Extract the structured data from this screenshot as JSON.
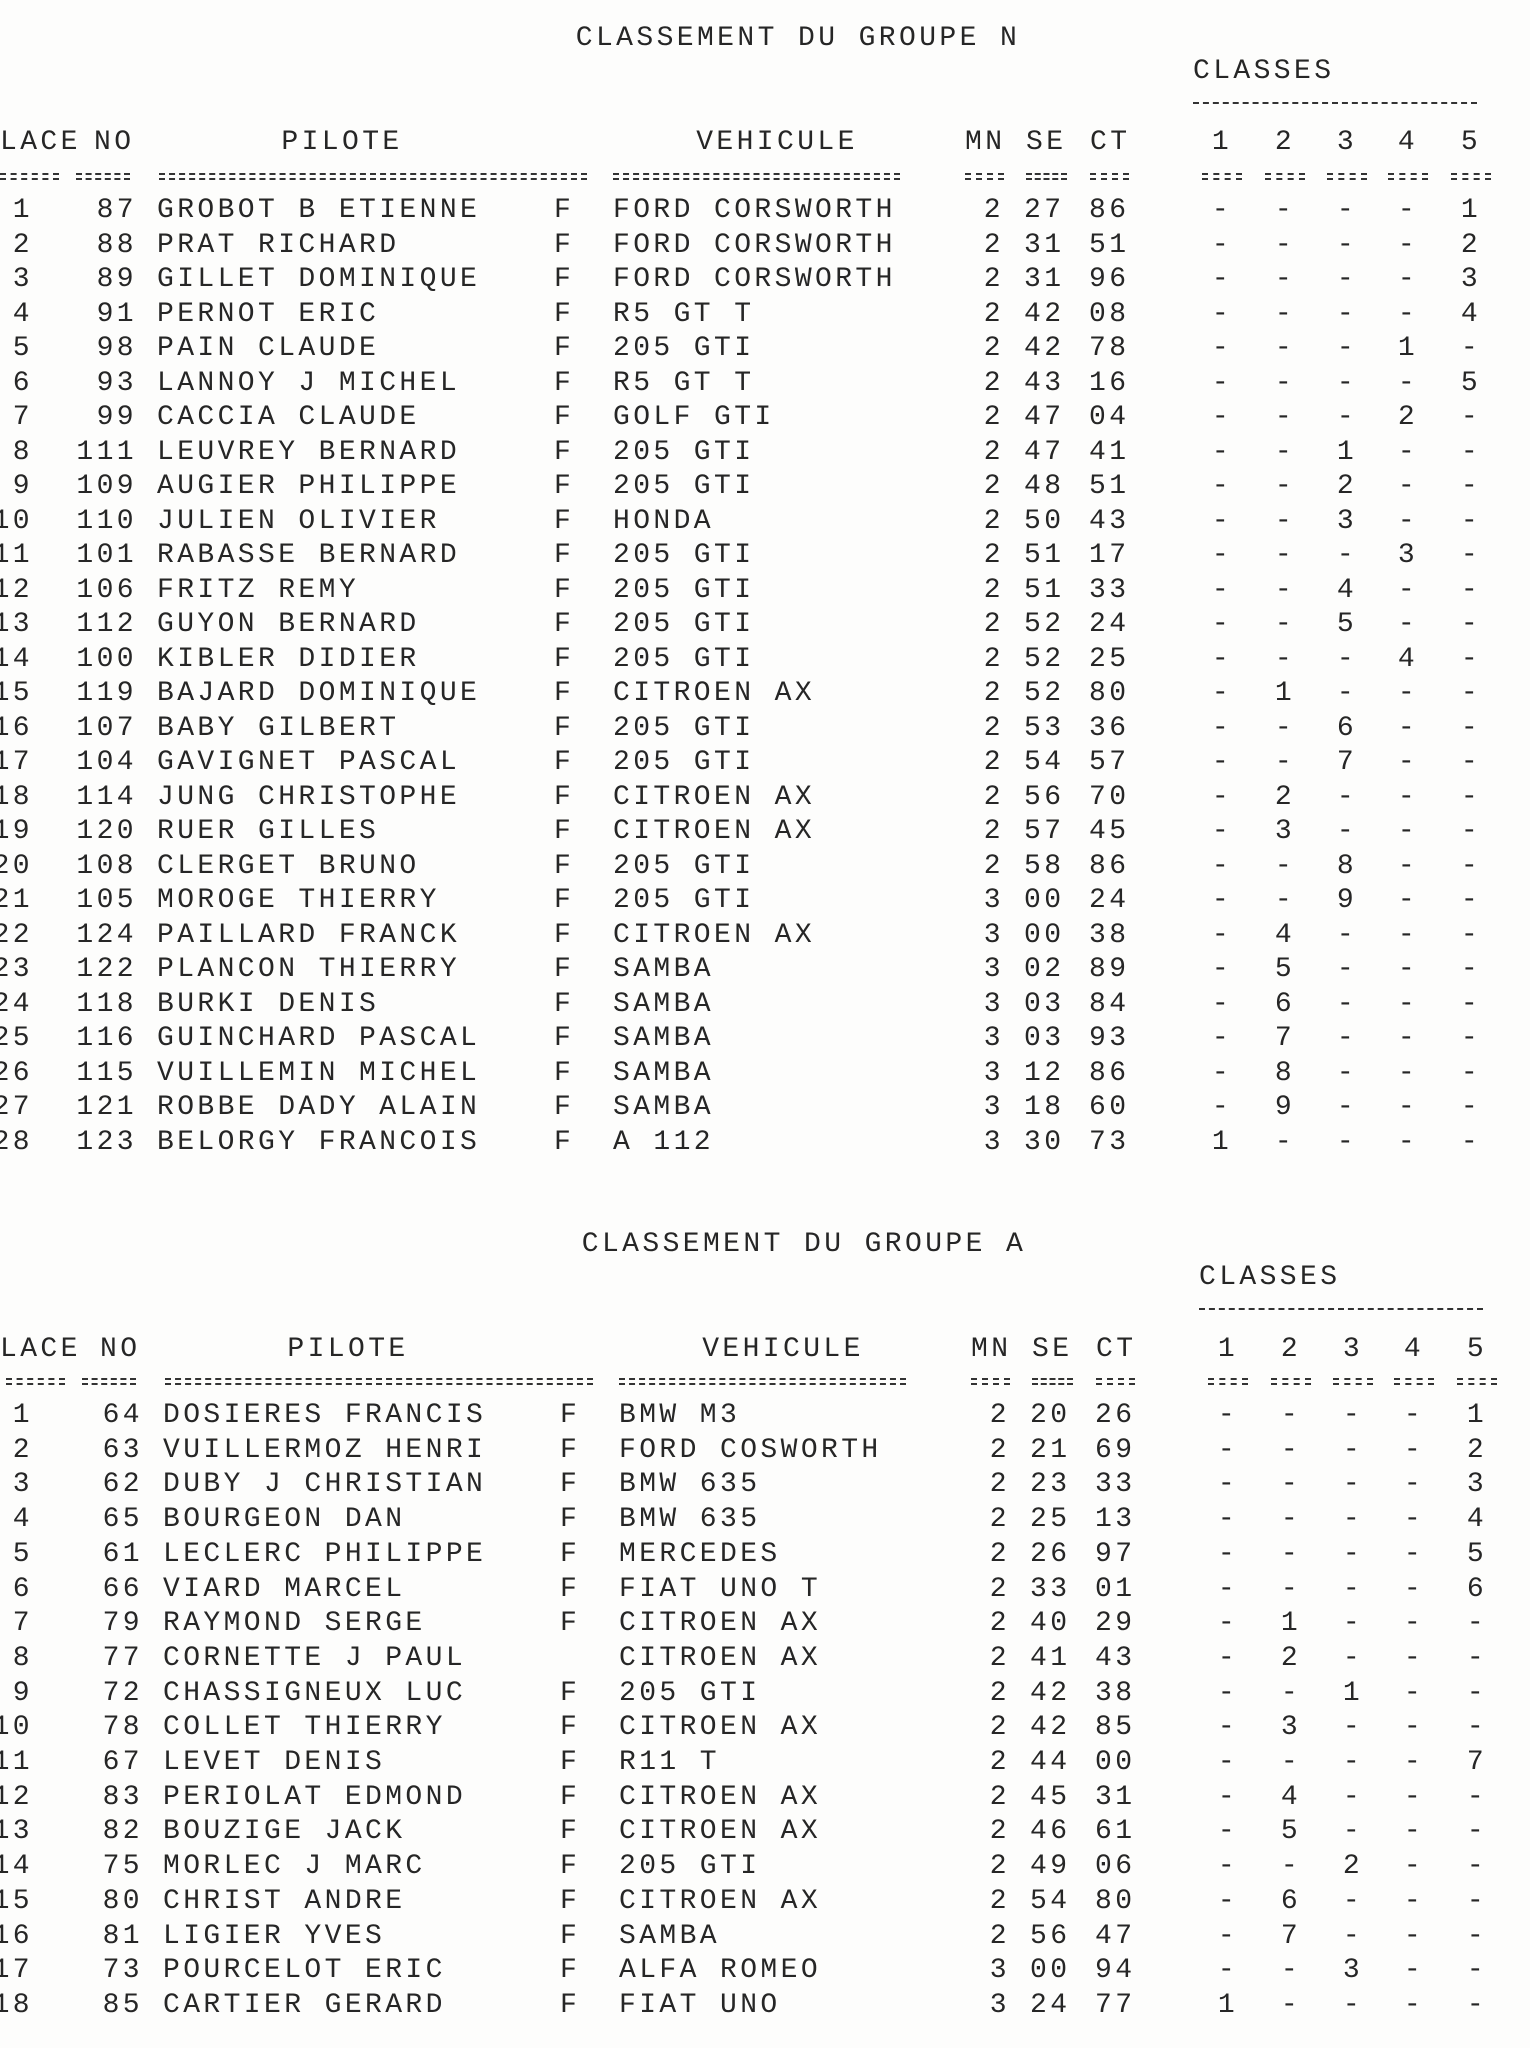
{
  "groups": [
    {
      "title": "CLASSEMENT DU GROUPE N",
      "classes_label": "CLASSES",
      "headers": {
        "place": "LACE",
        "no": "NO",
        "pilote": "PILOTE",
        "vehicule": "VEHICULE",
        "mn": "MN",
        "se": "SE",
        "ct": "CT",
        "classes": [
          "1",
          "2",
          "3",
          "4",
          "5"
        ]
      },
      "rows": [
        [
          "1",
          "87",
          "GROBOT B ETIENNE",
          "F",
          "FORD CORSWORTH",
          "2",
          "27",
          "86",
          "-",
          "-",
          "-",
          "-",
          "1"
        ],
        [
          "2",
          "88",
          "PRAT RICHARD",
          "F",
          "FORD CORSWORTH",
          "2",
          "31",
          "51",
          "-",
          "-",
          "-",
          "-",
          "2"
        ],
        [
          "3",
          "89",
          "GILLET DOMINIQUE",
          "F",
          "FORD CORSWORTH",
          "2",
          "31",
          "96",
          "-",
          "-",
          "-",
          "-",
          "3"
        ],
        [
          "4",
          "91",
          "PERNOT ERIC",
          "F",
          "R5 GT T",
          "2",
          "42",
          "08",
          "-",
          "-",
          "-",
          "-",
          "4"
        ],
        [
          "5",
          "98",
          "PAIN CLAUDE",
          "F",
          "205 GTI",
          "2",
          "42",
          "78",
          "-",
          "-",
          "-",
          "1",
          "-"
        ],
        [
          "6",
          "93",
          "LANNOY J MICHEL",
          "F",
          "R5 GT T",
          "2",
          "43",
          "16",
          "-",
          "-",
          "-",
          "-",
          "5"
        ],
        [
          "7",
          "99",
          "CACCIA CLAUDE",
          "F",
          "GOLF GTI",
          "2",
          "47",
          "04",
          "-",
          "-",
          "-",
          "2",
          "-"
        ],
        [
          "8",
          "111",
          "LEUVREY BERNARD",
          "F",
          "205 GTI",
          "2",
          "47",
          "41",
          "-",
          "-",
          "1",
          "-",
          "-"
        ],
        [
          "9",
          "109",
          "AUGIER PHILIPPE",
          "F",
          "205 GTI",
          "2",
          "48",
          "51",
          "-",
          "-",
          "2",
          "-",
          "-"
        ],
        [
          "10",
          "110",
          "JULIEN OLIVIER",
          "F",
          "HONDA",
          "2",
          "50",
          "43",
          "-",
          "-",
          "3",
          "-",
          "-"
        ],
        [
          "11",
          "101",
          "RABASSE BERNARD",
          "F",
          "205 GTI",
          "2",
          "51",
          "17",
          "-",
          "-",
          "-",
          "3",
          "-"
        ],
        [
          "12",
          "106",
          "FRITZ REMY",
          "F",
          "205 GTI",
          "2",
          "51",
          "33",
          "-",
          "-",
          "4",
          "-",
          "-"
        ],
        [
          "13",
          "112",
          "GUYON BERNARD",
          "F",
          "205 GTI",
          "2",
          "52",
          "24",
          "-",
          "-",
          "5",
          "-",
          "-"
        ],
        [
          "14",
          "100",
          "KIBLER DIDIER",
          "F",
          "205 GTI",
          "2",
          "52",
          "25",
          "-",
          "-",
          "-",
          "4",
          "-"
        ],
        [
          "15",
          "119",
          "BAJARD DOMINIQUE",
          "F",
          "CITROEN AX",
          "2",
          "52",
          "80",
          "-",
          "1",
          "-",
          "-",
          "-"
        ],
        [
          "16",
          "107",
          "BABY GILBERT",
          "F",
          "205 GTI",
          "2",
          "53",
          "36",
          "-",
          "-",
          "6",
          "-",
          "-"
        ],
        [
          "17",
          "104",
          "GAVIGNET PASCAL",
          "F",
          "205 GTI",
          "2",
          "54",
          "57",
          "-",
          "-",
          "7",
          "-",
          "-"
        ],
        [
          "18",
          "114",
          "JUNG CHRISTOPHE",
          "F",
          "CITROEN AX",
          "2",
          "56",
          "70",
          "-",
          "2",
          "-",
          "-",
          "-"
        ],
        [
          "19",
          "120",
          "RUER GILLES",
          "F",
          "CITROEN AX",
          "2",
          "57",
          "45",
          "-",
          "3",
          "-",
          "-",
          "-"
        ],
        [
          "20",
          "108",
          "CLERGET BRUNO",
          "F",
          "205 GTI",
          "2",
          "58",
          "86",
          "-",
          "-",
          "8",
          "-",
          "-"
        ],
        [
          "21",
          "105",
          "MOROGE THIERRY",
          "F",
          "205 GTI",
          "3",
          "00",
          "24",
          "-",
          "-",
          "9",
          "-",
          "-"
        ],
        [
          "22",
          "124",
          "PAILLARD FRANCK",
          "F",
          "CITROEN AX",
          "3",
          "00",
          "38",
          "-",
          "4",
          "-",
          "-",
          "-"
        ],
        [
          "23",
          "122",
          "PLANCON THIERRY",
          "F",
          "SAMBA",
          "3",
          "02",
          "89",
          "-",
          "5",
          "-",
          "-",
          "-"
        ],
        [
          "24",
          "118",
          "BURKI DENIS",
          "F",
          "SAMBA",
          "3",
          "03",
          "84",
          "-",
          "6",
          "-",
          "-",
          "-"
        ],
        [
          "25",
          "116",
          "GUINCHARD PASCAL",
          "F",
          "SAMBA",
          "3",
          "03",
          "93",
          "-",
          "7",
          "-",
          "-",
          "-"
        ],
        [
          "26",
          "115",
          "VUILLEMIN MICHEL",
          "F",
          "SAMBA",
          "3",
          "12",
          "86",
          "-",
          "8",
          "-",
          "-",
          "-"
        ],
        [
          "27",
          "121",
          "ROBBE DADY ALAIN",
          "F",
          "SAMBA",
          "3",
          "18",
          "60",
          "-",
          "9",
          "-",
          "-",
          "-"
        ],
        [
          "28",
          "123",
          "BELORGY FRANCOIS",
          "F",
          "A 112",
          "3",
          "30",
          "73",
          "1",
          "-",
          "-",
          "-",
          "-"
        ]
      ]
    },
    {
      "title": "CLASSEMENT DU GROUPE A",
      "classes_label": "CLASSES",
      "headers": {
        "place": "LACE",
        "no": "NO",
        "pilote": "PILOTE",
        "vehicule": "VEHICULE",
        "mn": "MN",
        "se": "SE",
        "ct": "CT",
        "classes": [
          "1",
          "2",
          "3",
          "4",
          "5"
        ]
      },
      "rows": [
        [
          "1",
          "64",
          "DOSIERES FRANCIS",
          "F",
          "BMW M3",
          "2",
          "20",
          "26",
          "-",
          "-",
          "-",
          "-",
          "1"
        ],
        [
          "2",
          "63",
          "VUILLERMOZ HENRI",
          "F",
          "FORD COSWORTH",
          "2",
          "21",
          "69",
          "-",
          "-",
          "-",
          "-",
          "2"
        ],
        [
          "3",
          "62",
          "DUBY J CHRISTIAN",
          "F",
          "BMW 635",
          "2",
          "23",
          "33",
          "-",
          "-",
          "-",
          "-",
          "3"
        ],
        [
          "4",
          "65",
          "BOURGEON DAN",
          "F",
          "BMW 635",
          "2",
          "25",
          "13",
          "-",
          "-",
          "-",
          "-",
          "4"
        ],
        [
          "5",
          "61",
          "LECLERC PHILIPPE",
          "F",
          "MERCEDES",
          "2",
          "26",
          "97",
          "-",
          "-",
          "-",
          "-",
          "5"
        ],
        [
          "6",
          "66",
          "VIARD MARCEL",
          "F",
          "FIAT UNO T",
          "2",
          "33",
          "01",
          "-",
          "-",
          "-",
          "-",
          "6"
        ],
        [
          "7",
          "79",
          "RAYMOND SERGE",
          "F",
          "CITROEN AX",
          "2",
          "40",
          "29",
          "-",
          "1",
          "-",
          "-",
          "-"
        ],
        [
          "8",
          "77",
          "CORNETTE J PAUL",
          null,
          "CITROEN AX",
          "2",
          "41",
          "43",
          "-",
          "2",
          "-",
          "-",
          "-"
        ],
        [
          "9",
          "72",
          "CHASSIGNEUX LUC",
          "F",
          "205 GTI",
          "2",
          "42",
          "38",
          "-",
          "-",
          "1",
          "-",
          "-"
        ],
        [
          "10",
          "78",
          "COLLET THIERRY",
          "F",
          "CITROEN AX",
          "2",
          "42",
          "85",
          "-",
          "3",
          "-",
          "-",
          "-"
        ],
        [
          "11",
          "67",
          "LEVET DENIS",
          "F",
          "R11 T",
          "2",
          "44",
          "00",
          "-",
          "-",
          "-",
          "-",
          "7"
        ],
        [
          "12",
          "83",
          "PERIOLAT EDMOND",
          "F",
          "CITROEN AX",
          "2",
          "45",
          "31",
          "-",
          "4",
          "-",
          "-",
          "-"
        ],
        [
          "13",
          "82",
          "BOUZIGE JACK",
          "F",
          "CITROEN AX",
          "2",
          "46",
          "61",
          "-",
          "5",
          "-",
          "-",
          "-"
        ],
        [
          "14",
          "75",
          "MORLEC J MARC",
          "F",
          "205 GTI",
          "2",
          "49",
          "06",
          "-",
          "-",
          "2",
          "-",
          "-"
        ],
        [
          "15",
          "80",
          "CHRIST ANDRE",
          "F",
          "CITROEN AX",
          "2",
          "54",
          "80",
          "-",
          "6",
          "-",
          "-",
          "-"
        ],
        [
          "16",
          "81",
          "LIGIER YVES",
          "F",
          "SAMBA",
          "2",
          "56",
          "47",
          "-",
          "7",
          "-",
          "-",
          "-"
        ],
        [
          "17",
          "73",
          "POURCELOT ERIC",
          "F",
          "ALFA ROMEO",
          "3",
          "00",
          "94",
          "-",
          "-",
          "3",
          "-",
          "-"
        ],
        [
          "18",
          "85",
          "CARTIER GERARD",
          "F",
          "FIAT UNO",
          "3",
          "24",
          "77",
          "1",
          "-",
          "-",
          "-",
          "-"
        ]
      ]
    }
  ]
}
